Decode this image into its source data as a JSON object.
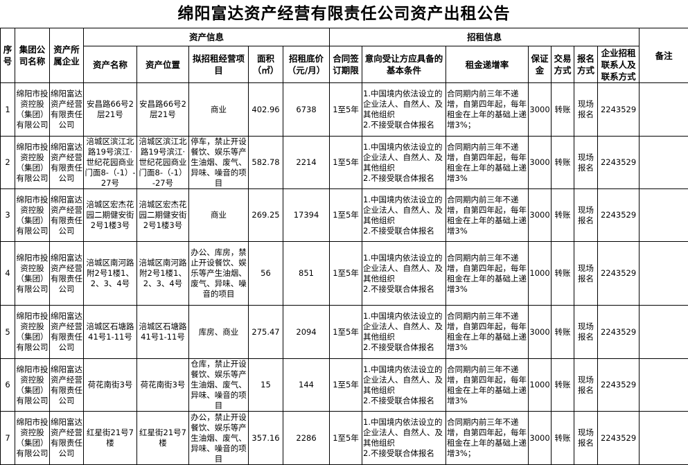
{
  "title": "绵阳富达资产经营有限责任公司资产出租公告",
  "header": {
    "group_asset": "资产信息",
    "group_lease": "招租信息",
    "seq": "序号",
    "group_company": "集团公司名称",
    "owner": "资产所属企业",
    "asset_name": "资产名称",
    "asset_location": "资产位置",
    "business": "拟招租经营项目",
    "area": "面积（㎡）",
    "price": "招租底价（元/月）",
    "term": "合同签订期限",
    "conditions": "意向受让方应具备的基本条件",
    "increase": "租金递增率",
    "deposit": "保证金",
    "payment": "交易方式",
    "signup": "报名方式",
    "contact": "企业招租联系人及联系方式",
    "remark": "备注"
  },
  "rows": [
    {
      "seq": "1",
      "group": "绵阳市投资控股（集团）有限公司",
      "owner": "绵阳富达资产经营有限责任公司",
      "name": "安昌路66号2层21号",
      "location": "安昌路66号2层21号",
      "business": "商业",
      "area": "402.96",
      "price": "6738",
      "term": "1至5年",
      "conditions": "1.中国境内依法设立的企业法人、自然人、及其他组织\n2.不接受联合体报名",
      "increase": "合同期内前三年不递增，自第四年起，每年租金在上年的基础上递增3%；",
      "deposit": "3000",
      "payment": "转账",
      "signup": "现场报名",
      "contact": "2243529",
      "remark": ""
    },
    {
      "seq": "2",
      "group": "绵阳市投资控股（集团）有限公司",
      "owner": "绵阳富达资产经营有限责任公司",
      "name": "涪城区滨江北路19号滨江·世纪花园商业门面8-（-1）-27号",
      "location": "涪城区滨江北路19号滨江·世纪花园商业门面8-（-1）-27号",
      "business": "停车，禁止开设餐饮、娱乐等产生油烟、废气、异味、噪音的项目",
      "area": "582.78",
      "price": "2214",
      "term": "1至5年",
      "conditions": "1.中国境内依法设立的企业法人、自然人、及其他组织\n2.不接受联合体报名",
      "increase": "合同期内前三年不递增，自第四年起，每年租金在上年的基础上递增3%",
      "deposit": "3000",
      "payment": "转账",
      "signup": "现场报名",
      "contact": "2243529",
      "remark": ""
    },
    {
      "seq": "3",
      "group": "绵阳市投资控股（集团）有限公司",
      "owner": "绵阳富达资产经营有限责任公司",
      "name": "涪城区宏杰花园二期健安街2号1楼3号",
      "location": "涪城区宏杰花园二期健安街2号1楼3号",
      "business": "商业",
      "area": "269.25",
      "price": "17394",
      "term": "1至5年",
      "conditions": "1.中国境内依法设立的企业法人、自然人、及其他组织\n2.不接受联合体报名",
      "increase": "合同期内前三年不递增，自第四年起，每年租金在上年的基础上递增3%",
      "deposit": "3000",
      "payment": "转账",
      "signup": "现场报名",
      "contact": "2243529",
      "remark": ""
    },
    {
      "seq": "4",
      "group": "绵阳市投资控股（集团）有限公司",
      "owner": "绵阳富达资产经营有限责任公司",
      "name": "涪城区南河路附2号1楼1、2、3、4号",
      "location": "涪城区南河路附2号1楼1、2、3、4号",
      "business": "办公、库房，禁止开设餐饮、娱乐等产生油烟、废气、异味、噪音的项目",
      "area": "56",
      "price": "851",
      "term": "1至5年",
      "conditions": "1.中国境内依法设立的企业法人、自然人、及其他组织\n2.不接受联合体报名",
      "increase": "合同期内前三年不递增，自第四年起，每年租金在上年的基础上递增3%",
      "deposit": "1000",
      "payment": "转账",
      "signup": "现场报名",
      "contact": "2243529",
      "remark": ""
    },
    {
      "seq": "5",
      "group": "绵阳市投资控股（集团）有限公司",
      "owner": "绵阳富达资产经营有限责任公司",
      "name": "涪城区石塘路41号1-11号",
      "location": "涪城区石塘路41号1-11号",
      "business": "库房、商业",
      "area": "275.47",
      "price": "2094",
      "term": "1至5年",
      "conditions": "1.中国境内依法设立的企业法人、自然人、及其他组织\n2.不接受联合体报名",
      "increase": "合同期内前三年不递增，自第四年起，每年租金在上年的基础上递增3%",
      "deposit": "3000",
      "payment": "转账",
      "signup": "现场报名",
      "contact": "2243529",
      "remark": ""
    },
    {
      "seq": "6",
      "group": "绵阳市投资控股（集团）有限公司",
      "owner": "绵阳富达资产经营有限责任公司",
      "name": "荷花南街3号",
      "location": "荷花南街3号",
      "business": "仓库，禁止开设餐饮、娱乐等产生油烟、废气、异味、噪音的项目",
      "area": "15",
      "price": "144",
      "term": "1至5年",
      "conditions": "1.中国境内依法设立的企业法人、自然人、及其他组织\n2.不接受联合体报名",
      "increase": "合同期内前三年不递增，自第四年起，每年租金在上年的基础上递增3%",
      "deposit": "1000",
      "payment": "转账",
      "signup": "现场报名",
      "contact": "2243529",
      "remark": ""
    },
    {
      "seq": "7",
      "group": "绵阳市投资控股（集团）有限公司",
      "owner": "绵阳富达资产经营有限责任公司",
      "name": "红星街21号7楼",
      "location": "红星街21号7楼",
      "business": "办公，禁止开设餐饮、娱乐等产生油烟、废气、异味、噪音的项目",
      "area": "357.16",
      "price": "2286",
      "term": "1至5年",
      "conditions": "1.中国境内依法设立的企业法人、自然人、及其他组织\n2.不接受联合体报名",
      "increase": "合同期内前三年不递增，自第四年起，每年租金在上年的基础上递增3%；",
      "deposit": "3000",
      "payment": "转账",
      "signup": "现场报名",
      "contact": "2243529",
      "remark": ""
    }
  ]
}
